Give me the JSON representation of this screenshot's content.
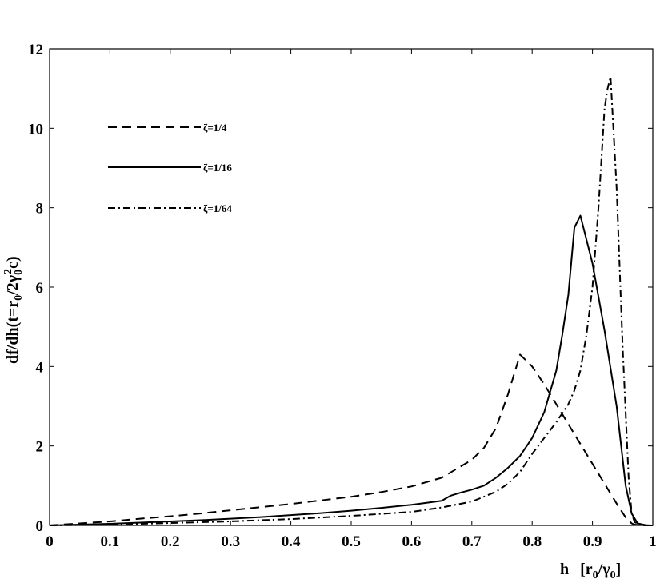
{
  "chart_data": {
    "type": "line",
    "xlabel": {
      "main": "h",
      "bracket_open": "[r",
      "sub1": "0",
      "slash": "/γ",
      "sub2": "0",
      "bracket_close": "]"
    },
    "ylabel": {
      "main": "df/dh(t=r",
      "sub1": "0",
      "mid1": "/2γ",
      "sub2": "0",
      "sup": "2",
      "tail": "c)"
    },
    "xlim": [
      0,
      1
    ],
    "ylim": [
      0,
      12
    ],
    "x_ticks": [
      0,
      0.1,
      0.2,
      0.3,
      0.4,
      0.5,
      0.6,
      0.7,
      0.8,
      0.9,
      1
    ],
    "x_tick_labels": [
      "0",
      "0.1",
      "0.2",
      "0.3",
      "0.4",
      "0.5",
      "0.6",
      "0.7",
      "0.8",
      "0.9",
      "1"
    ],
    "y_ticks": [
      0,
      2,
      4,
      6,
      8,
      10,
      12
    ],
    "y_tick_labels": [
      "0",
      "2",
      "4",
      "6",
      "8",
      "10",
      "12"
    ],
    "grid": false,
    "legend_position": "upper-left",
    "series": [
      {
        "name": "ζ=1/4",
        "style": "dashed",
        "color": "#000000",
        "x": [
          0,
          0.05,
          0.1,
          0.15,
          0.2,
          0.25,
          0.3,
          0.35,
          0.4,
          0.45,
          0.5,
          0.55,
          0.6,
          0.65,
          0.7,
          0.72,
          0.74,
          0.76,
          0.78,
          0.8,
          0.82,
          0.84,
          0.86,
          0.88,
          0.9,
          0.92,
          0.94,
          0.955,
          0.965,
          0.97,
          0.98,
          1.0
        ],
        "y": [
          0,
          0.05,
          0.1,
          0.17,
          0.23,
          0.3,
          0.38,
          0.46,
          0.54,
          0.63,
          0.72,
          0.84,
          0.98,
          1.2,
          1.65,
          1.95,
          2.45,
          3.3,
          4.3,
          4.0,
          3.55,
          3.05,
          2.55,
          2.05,
          1.55,
          1.05,
          0.55,
          0.2,
          0.05,
          0.02,
          0,
          0
        ]
      },
      {
        "name": "ζ=1/16",
        "style": "solid",
        "color": "#000000",
        "x": [
          0,
          0.05,
          0.1,
          0.15,
          0.2,
          0.25,
          0.3,
          0.35,
          0.4,
          0.45,
          0.5,
          0.55,
          0.6,
          0.65,
          0.665,
          0.68,
          0.7,
          0.72,
          0.74,
          0.76,
          0.78,
          0.8,
          0.82,
          0.84,
          0.85,
          0.86,
          0.87,
          0.88,
          0.9,
          0.92,
          0.94,
          0.955,
          0.965,
          0.975,
          0.99,
          1.0
        ],
        "y": [
          0,
          0.02,
          0.04,
          0.07,
          0.1,
          0.13,
          0.17,
          0.21,
          0.26,
          0.31,
          0.37,
          0.44,
          0.52,
          0.62,
          0.75,
          0.82,
          0.9,
          1.0,
          1.2,
          1.45,
          1.75,
          2.2,
          2.85,
          3.9,
          4.8,
          5.8,
          7.5,
          7.8,
          6.6,
          4.9,
          3.0,
          1.0,
          0.3,
          0.05,
          0,
          0
        ]
      },
      {
        "name": "ζ=1/64",
        "style": "dashdot",
        "color": "#000000",
        "x": [
          0,
          0.05,
          0.1,
          0.15,
          0.2,
          0.25,
          0.3,
          0.35,
          0.4,
          0.45,
          0.5,
          0.55,
          0.6,
          0.65,
          0.7,
          0.72,
          0.74,
          0.76,
          0.78,
          0.8,
          0.82,
          0.84,
          0.86,
          0.87,
          0.88,
          0.89,
          0.9,
          0.91,
          0.92,
          0.925,
          0.93,
          0.94,
          0.95,
          0.96,
          0.965,
          0.97,
          0.98,
          1.0
        ],
        "y": [
          0,
          0.01,
          0.02,
          0.04,
          0.06,
          0.08,
          0.1,
          0.13,
          0.16,
          0.2,
          0.24,
          0.29,
          0.34,
          0.45,
          0.6,
          0.72,
          0.85,
          1.05,
          1.35,
          1.8,
          2.2,
          2.6,
          3.05,
          3.4,
          3.9,
          4.8,
          6.0,
          8.0,
          10.5,
          11.0,
          11.3,
          8.5,
          4.5,
          1.2,
          0.3,
          0.08,
          0.01,
          0
        ]
      }
    ]
  }
}
